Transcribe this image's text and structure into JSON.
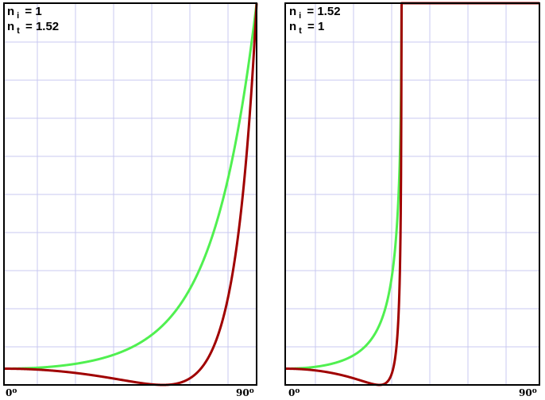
{
  "chart_data": [
    {
      "type": "line",
      "legend": {
        "n_i": "1",
        "n_t": "1.52"
      },
      "x_ticks": [
        "0",
        "90"
      ],
      "x_tick_unit": "o",
      "xlim": [
        0,
        90
      ],
      "ylim": [
        0,
        1
      ],
      "n1": 1.0,
      "n2": 1.52,
      "colors": {
        "series_1": "#50f050",
        "series_2": "#a00000"
      },
      "series": [
        {
          "x": [
            0,
            10,
            20,
            30,
            40,
            50,
            56.7,
            60,
            70,
            80,
            85,
            90
          ],
          "values": [
            0.043,
            0.047,
            0.053,
            0.064,
            0.082,
            0.115,
            0.149,
            0.172,
            0.268,
            0.483,
            0.689,
            1.0
          ]
        },
        {
          "x": [
            0,
            10,
            20,
            30,
            40,
            50,
            56.7,
            60,
            70,
            80,
            85,
            90
          ],
          "values": [
            0.043,
            0.039,
            0.029,
            0.016,
            0.004,
            0.001,
            0.0,
            0.001,
            0.039,
            0.299,
            0.562,
            1.0
          ]
        }
      ]
    },
    {
      "type": "line",
      "legend": {
        "n_i": "1.52",
        "n_t": "1"
      },
      "x_ticks": [
        "0",
        "90"
      ],
      "x_tick_unit": "o",
      "xlim": [
        0,
        90
      ],
      "ylim": [
        0,
        1
      ],
      "n1": 1.52,
      "n2": 1.0,
      "colors": {
        "series_1": "#50f050",
        "series_2": "#a00000"
      },
      "series": [
        {
          "x": [
            0,
            10,
            20,
            30,
            33.3,
            38,
            41.1,
            50,
            90
          ],
          "values": [
            0.043,
            0.048,
            0.063,
            0.117,
            0.17,
            0.385,
            1.0,
            1.0,
            1.0
          ]
        },
        {
          "x": [
            0,
            10,
            20,
            30,
            33.3,
            38,
            41.1,
            50,
            90
          ],
          "values": [
            0.043,
            0.036,
            0.019,
            0.0,
            0.01,
            0.165,
            1.0,
            1.0,
            1.0
          ]
        }
      ]
    }
  ]
}
